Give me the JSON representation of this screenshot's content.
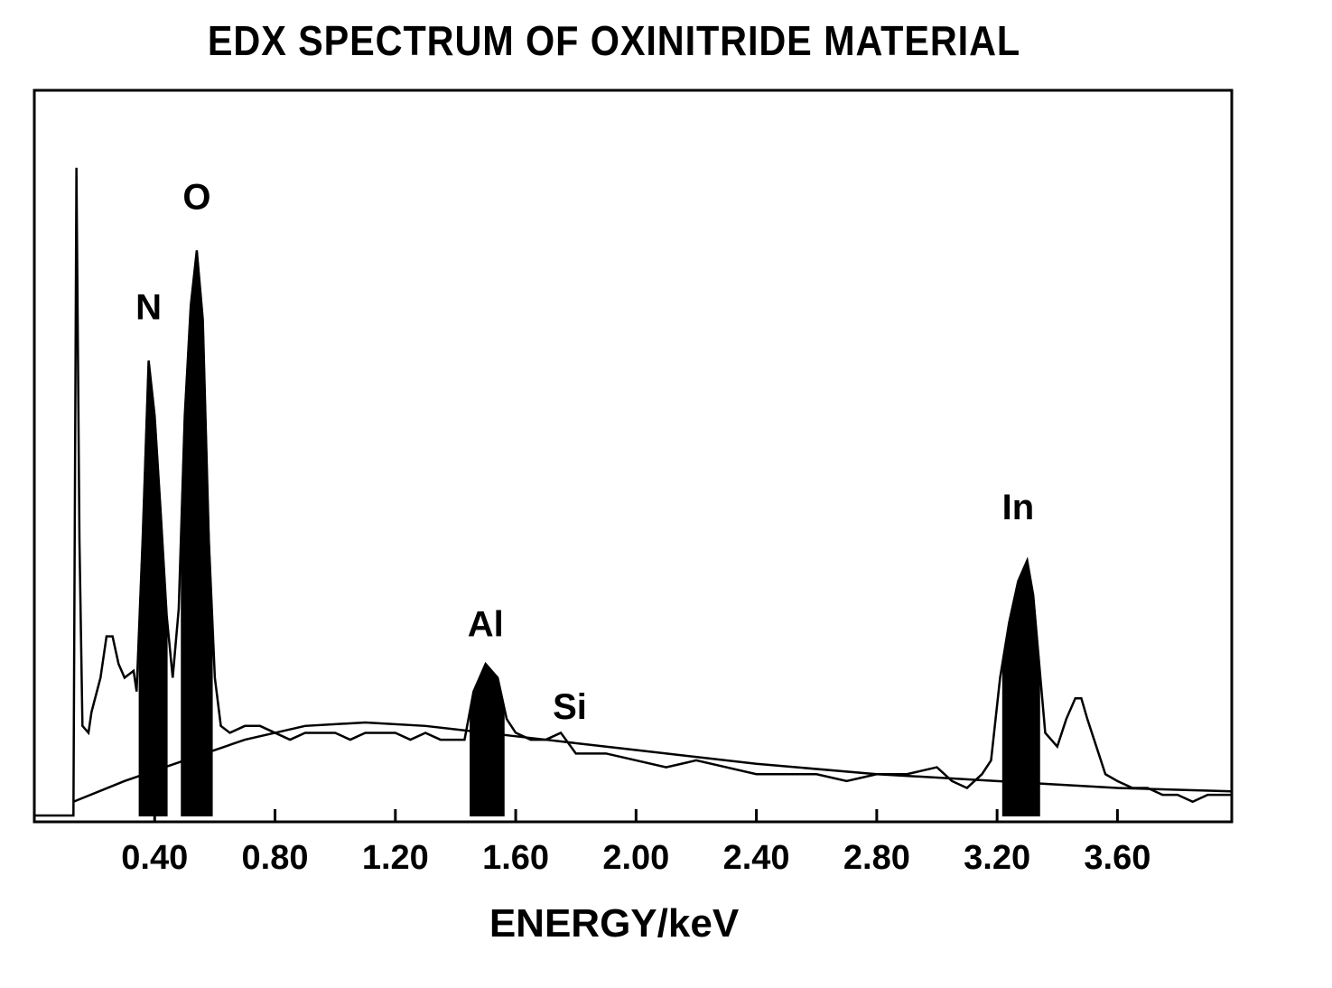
{
  "chart_data": {
    "type": "line",
    "title": "EDX SPECTRUM OF OXINITRIDE MATERIAL",
    "xlabel": "ENERGY/keV",
    "ylabel": "",
    "xlim": [
      0.0,
      3.98
    ],
    "ylim": [
      0,
      100
    ],
    "grid": false,
    "legend": "none",
    "x_ticks": [
      {
        "value": 0.4,
        "label": "0.40"
      },
      {
        "value": 0.8,
        "label": "0.80"
      },
      {
        "value": 1.2,
        "label": "1.20"
      },
      {
        "value": 1.6,
        "label": "1.60"
      },
      {
        "value": 2.0,
        "label": "2.00"
      },
      {
        "value": 2.4,
        "label": "2.40"
      },
      {
        "value": 2.8,
        "label": "2.80"
      },
      {
        "value": 3.2,
        "label": "3.20"
      },
      {
        "value": 3.6,
        "label": "3.60"
      }
    ],
    "peaks": [
      {
        "label": "N",
        "x_start": 0.35,
        "x_end": 0.44,
        "height": 66,
        "label_x": 0.38,
        "label_y": 72
      },
      {
        "label": "O",
        "x_start": 0.49,
        "x_end": 0.59,
        "height": 82,
        "label_x": 0.54,
        "label_y": 88
      },
      {
        "label": "Al",
        "x_start": 1.45,
        "x_end": 1.56,
        "height": 20,
        "label_x": 1.5,
        "label_y": 26
      },
      {
        "label": "Si",
        "x_start": 1.74,
        "x_end": 1.74,
        "height": 0,
        "label_x": 1.78,
        "label_y": 14
      },
      {
        "label": "In",
        "x_start": 3.22,
        "x_end": 3.34,
        "height": 37,
        "label_x": 3.27,
        "label_y": 43
      }
    ],
    "spectrum": [
      [
        0.0,
        0
      ],
      [
        0.13,
        0
      ],
      [
        0.14,
        94
      ],
      [
        0.15,
        40
      ],
      [
        0.16,
        13
      ],
      [
        0.18,
        12
      ],
      [
        0.19,
        15
      ],
      [
        0.22,
        20
      ],
      [
        0.24,
        26
      ],
      [
        0.26,
        26
      ],
      [
        0.28,
        22
      ],
      [
        0.3,
        20
      ],
      [
        0.33,
        21
      ],
      [
        0.34,
        18
      ],
      [
        0.36,
        40
      ],
      [
        0.38,
        66
      ],
      [
        0.4,
        58
      ],
      [
        0.42,
        44
      ],
      [
        0.44,
        29
      ],
      [
        0.46,
        20
      ],
      [
        0.48,
        30
      ],
      [
        0.5,
        58
      ],
      [
        0.52,
        74
      ],
      [
        0.54,
        82
      ],
      [
        0.56,
        72
      ],
      [
        0.58,
        40
      ],
      [
        0.6,
        20
      ],
      [
        0.62,
        13
      ],
      [
        0.65,
        12
      ],
      [
        0.7,
        13
      ],
      [
        0.75,
        13
      ],
      [
        0.8,
        12
      ],
      [
        0.85,
        11
      ],
      [
        0.9,
        12
      ],
      [
        0.95,
        12
      ],
      [
        1.0,
        12
      ],
      [
        1.05,
        11
      ],
      [
        1.1,
        12
      ],
      [
        1.15,
        12
      ],
      [
        1.2,
        12
      ],
      [
        1.25,
        11
      ],
      [
        1.3,
        12
      ],
      [
        1.35,
        11
      ],
      [
        1.4,
        11
      ],
      [
        1.43,
        11
      ],
      [
        1.46,
        18
      ],
      [
        1.5,
        22
      ],
      [
        1.54,
        20
      ],
      [
        1.57,
        14
      ],
      [
        1.6,
        12
      ],
      [
        1.65,
        11
      ],
      [
        1.7,
        11
      ],
      [
        1.75,
        12
      ],
      [
        1.8,
        9
      ],
      [
        1.9,
        9
      ],
      [
        2.0,
        8
      ],
      [
        2.1,
        7
      ],
      [
        2.2,
        8
      ],
      [
        2.3,
        7
      ],
      [
        2.4,
        6
      ],
      [
        2.5,
        6
      ],
      [
        2.6,
        6
      ],
      [
        2.7,
        5
      ],
      [
        2.8,
        6
      ],
      [
        2.9,
        6
      ],
      [
        3.0,
        7
      ],
      [
        3.05,
        5
      ],
      [
        3.1,
        4
      ],
      [
        3.15,
        6
      ],
      [
        3.18,
        8
      ],
      [
        3.21,
        20
      ],
      [
        3.24,
        28
      ],
      [
        3.27,
        34
      ],
      [
        3.3,
        37
      ],
      [
        3.32,
        32
      ],
      [
        3.34,
        22
      ],
      [
        3.36,
        12
      ],
      [
        3.4,
        10
      ],
      [
        3.43,
        14
      ],
      [
        3.46,
        17
      ],
      [
        3.48,
        17
      ],
      [
        3.5,
        14
      ],
      [
        3.53,
        10
      ],
      [
        3.56,
        6
      ],
      [
        3.6,
        5
      ],
      [
        3.65,
        4
      ],
      [
        3.7,
        4
      ],
      [
        3.75,
        3
      ],
      [
        3.8,
        3
      ],
      [
        3.85,
        2
      ],
      [
        3.9,
        3
      ],
      [
        3.98,
        3
      ]
    ],
    "background": [
      [
        0.13,
        2
      ],
      [
        0.3,
        5
      ],
      [
        0.5,
        8
      ],
      [
        0.7,
        11
      ],
      [
        0.9,
        13
      ],
      [
        1.1,
        13.5
      ],
      [
        1.3,
        13
      ],
      [
        1.5,
        12
      ],
      [
        1.7,
        11
      ],
      [
        2.0,
        9.5
      ],
      [
        2.4,
        7.5
      ],
      [
        2.8,
        6
      ],
      [
        3.2,
        5
      ],
      [
        3.6,
        4
      ],
      [
        3.98,
        3.5
      ]
    ]
  }
}
